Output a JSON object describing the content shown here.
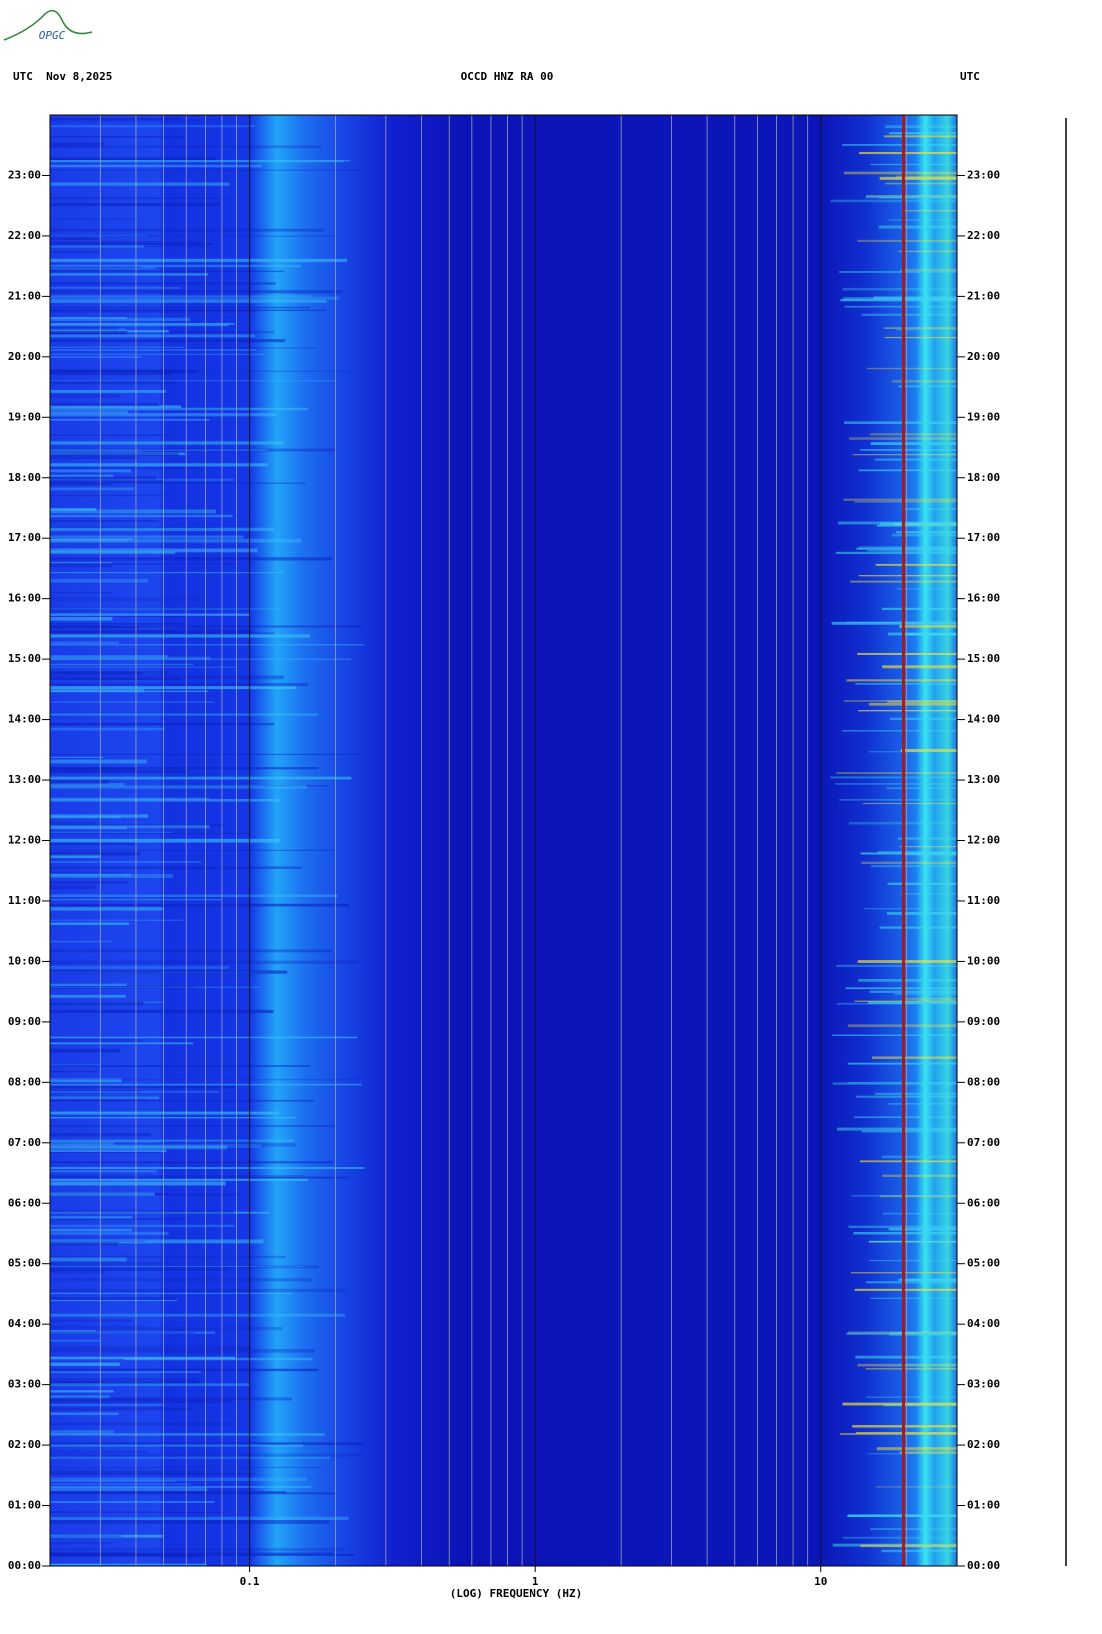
{
  "logo": "OPGC",
  "chart_data": {
    "type": "spectrogram",
    "title": "OCCD HNZ RA 00",
    "date_label": "UTC  Nov 8,2025",
    "right_label": "UTC",
    "xlabel": "(LOG) FREQUENCY (HZ)",
    "xscale": "log",
    "xlim": [
      0.02,
      30
    ],
    "xticks": [
      0.1,
      1,
      10
    ],
    "x_minor_ticks": [
      0.02,
      0.03,
      0.04,
      0.05,
      0.06,
      0.07,
      0.08,
      0.09,
      0.2,
      0.3,
      0.4,
      0.5,
      0.6,
      0.7,
      0.8,
      0.9,
      2,
      3,
      4,
      5,
      6,
      7,
      8,
      9,
      20,
      30
    ],
    "ylim": [
      0,
      24
    ],
    "yticks": [
      {
        "value": 0,
        "label": "00:00"
      },
      {
        "value": 1,
        "label": "01:00"
      },
      {
        "value": 2,
        "label": "02:00"
      },
      {
        "value": 3,
        "label": "03:00"
      },
      {
        "value": 4,
        "label": "04:00"
      },
      {
        "value": 5,
        "label": "05:00"
      },
      {
        "value": 6,
        "label": "06:00"
      },
      {
        "value": 7,
        "label": "07:00"
      },
      {
        "value": 8,
        "label": "08:00"
      },
      {
        "value": 9,
        "label": "09:00"
      },
      {
        "value": 10,
        "label": "10:00"
      },
      {
        "value": 11,
        "label": "11:00"
      },
      {
        "value": 12,
        "label": "12:00"
      },
      {
        "value": 13,
        "label": "13:00"
      },
      {
        "value": 14,
        "label": "14:00"
      },
      {
        "value": 15,
        "label": "15:00"
      },
      {
        "value": 16,
        "label": "16:00"
      },
      {
        "value": 17,
        "label": "17:00"
      },
      {
        "value": 18,
        "label": "18:00"
      },
      {
        "value": 19,
        "label": "19:00"
      },
      {
        "value": 20,
        "label": "20:00"
      },
      {
        "value": 21,
        "label": "21:00"
      },
      {
        "value": 22,
        "label": "22:00"
      },
      {
        "value": 23,
        "label": "23:00"
      }
    ]
  }
}
